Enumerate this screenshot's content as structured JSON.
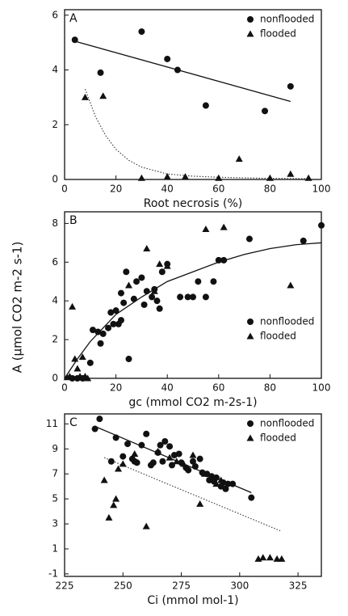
{
  "chart_data": [
    {
      "type": "scatter",
      "panel_label": "A",
      "x_label": "Root necrosis (%)",
      "xlim": [
        0,
        100
      ],
      "ylim": [
        0,
        6.2
      ],
      "xticks": [
        0,
        20,
        40,
        60,
        80,
        100
      ],
      "yticks": [
        0,
        2,
        4,
        6
      ],
      "legend": "upper right",
      "series": [
        {
          "name": "nonflooded",
          "marker": "circle",
          "color": "#111",
          "x": [
            4,
            14,
            30,
            40,
            44,
            55,
            78,
            88
          ],
          "values": [
            5.1,
            3.9,
            5.4,
            4.4,
            4.0,
            2.7,
            2.5,
            3.4
          ]
        },
        {
          "name": "flooded",
          "marker": "triangle",
          "color": "#111",
          "x": [
            8,
            15,
            30,
            40,
            47,
            60,
            68,
            80,
            88,
            95
          ],
          "values": [
            3.0,
            3.05,
            0.05,
            0.1,
            0.1,
            0.05,
            0.75,
            0.05,
            0.2,
            0.05
          ]
        }
      ],
      "fits": [
        {
          "style": "solid",
          "color": "#111",
          "x": [
            4,
            88
          ],
          "values": [
            5.05,
            2.85
          ]
        },
        {
          "style": "dotted",
          "color": "#444",
          "x": [
            8,
            12,
            16,
            20,
            25,
            30,
            40,
            50,
            60,
            80,
            95
          ],
          "values": [
            3.3,
            2.3,
            1.6,
            1.1,
            0.7,
            0.45,
            0.2,
            0.12,
            0.08,
            0.04,
            0.03
          ]
        }
      ]
    },
    {
      "type": "scatter",
      "panel_label": "B",
      "x_label": "gc (mmol CO2 m-2s-1)",
      "y_label": "A (μmol CO2 m-2 s-1)",
      "xlim": [
        0,
        100
      ],
      "ylim": [
        0,
        8.6
      ],
      "xticks": [
        0,
        20,
        40,
        60,
        80,
        100
      ],
      "yticks": [
        0,
        2,
        4,
        6,
        8
      ],
      "legend": "lower right",
      "series": [
        {
          "name": "nonflooded",
          "marker": "circle",
          "color": "#111",
          "x": [
            3,
            5,
            7,
            10,
            11,
            13,
            14,
            15,
            17,
            18,
            19,
            20,
            21,
            22,
            22,
            23,
            24,
            25,
            27,
            28,
            30,
            31,
            32,
            34,
            35,
            36,
            37,
            38,
            40,
            45,
            48,
            50,
            52,
            55,
            58,
            60,
            62,
            72,
            93,
            100
          ],
          "values": [
            0,
            0,
            0,
            0.8,
            2.5,
            2.4,
            1.8,
            2.3,
            2.6,
            3.4,
            2.8,
            3.5,
            2.8,
            4.4,
            3.0,
            3.9,
            5.5,
            1.0,
            4.1,
            5.0,
            5.2,
            3.8,
            4.5,
            4.2,
            4.6,
            4.0,
            3.6,
            5.5,
            5.9,
            4.2,
            4.2,
            4.2,
            5.0,
            4.2,
            5.0,
            6.1,
            6.1,
            7.2,
            7.1,
            7.9
          ]
        },
        {
          "name": "flooded",
          "marker": "triangle",
          "color": "#111",
          "x": [
            1,
            2,
            3,
            4,
            5,
            6,
            7,
            8,
            9,
            25,
            32,
            35,
            37,
            40,
            55,
            62,
            88
          ],
          "values": [
            0.05,
            0.1,
            3.7,
            1.0,
            0.5,
            0.1,
            1.1,
            0.1,
            0,
            4.8,
            6.7,
            4.5,
            5.9,
            5.8,
            7.7,
            7.8,
            4.8
          ]
        }
      ],
      "fits": [
        {
          "style": "solid",
          "color": "#111",
          "x": [
            0,
            5,
            10,
            15,
            20,
            30,
            40,
            50,
            60,
            70,
            80,
            90,
            100
          ],
          "values": [
            0,
            1.0,
            1.9,
            2.6,
            3.3,
            4.2,
            5.0,
            5.5,
            6.0,
            6.4,
            6.7,
            6.9,
            7.0
          ]
        }
      ]
    },
    {
      "type": "scatter",
      "panel_label": "C",
      "x_label": "Ci (mmol mol-1)",
      "xlim": [
        225,
        335
      ],
      "ylim": [
        -1.2,
        11.8
      ],
      "xticks": [
        225,
        250,
        275,
        300,
        325
      ],
      "yticks": [
        -1,
        1,
        3,
        5,
        7,
        9,
        11
      ],
      "legend": "upper right",
      "series": [
        {
          "name": "nonflooded",
          "marker": "circle",
          "color": "#111",
          "x": [
            238,
            240,
            245,
            247,
            250,
            252,
            254,
            255,
            256,
            258,
            260,
            262,
            263,
            265,
            266,
            267,
            268,
            270,
            271,
            272,
            274,
            275,
            277,
            278,
            280,
            281,
            283,
            284,
            286,
            287,
            288,
            289,
            290,
            292,
            293,
            294,
            295,
            297,
            305
          ],
          "values": [
            10.6,
            11.4,
            8.0,
            9.9,
            8.4,
            9.4,
            8.2,
            8.0,
            7.9,
            9.3,
            10.2,
            7.7,
            7.9,
            8.7,
            9.3,
            8.0,
            9.6,
            9.2,
            7.7,
            8.5,
            8.6,
            7.9,
            7.5,
            7.3,
            8.0,
            7.6,
            8.2,
            7.1,
            7.0,
            6.5,
            6.8,
            6.4,
            6.7,
            6.0,
            6.3,
            5.8,
            6.2,
            6.2,
            5.1
          ]
        },
        {
          "name": "flooded",
          "marker": "triangle",
          "color": "#111",
          "x": [
            242,
            244,
            246,
            247,
            248,
            250,
            255,
            260,
            265,
            270,
            273,
            276,
            280,
            283,
            285,
            288,
            290,
            292,
            308,
            310,
            313,
            316,
            318
          ],
          "values": [
            6.5,
            3.5,
            4.5,
            5.0,
            7.4,
            7.8,
            8.6,
            2.8,
            8.8,
            8.3,
            8.0,
            7.8,
            8.5,
            4.6,
            7.0,
            6.6,
            6.2,
            6.5,
            0.2,
            0.3,
            0.3,
            0.2,
            0.2
          ]
        }
      ],
      "fits": [
        {
          "style": "solid",
          "color": "#111",
          "x": [
            238,
            305
          ],
          "values": [
            10.8,
            5.5
          ]
        },
        {
          "style": "dotted",
          "color": "#444",
          "x": [
            242,
            318
          ],
          "values": [
            8.3,
            2.4
          ]
        }
      ]
    }
  ]
}
